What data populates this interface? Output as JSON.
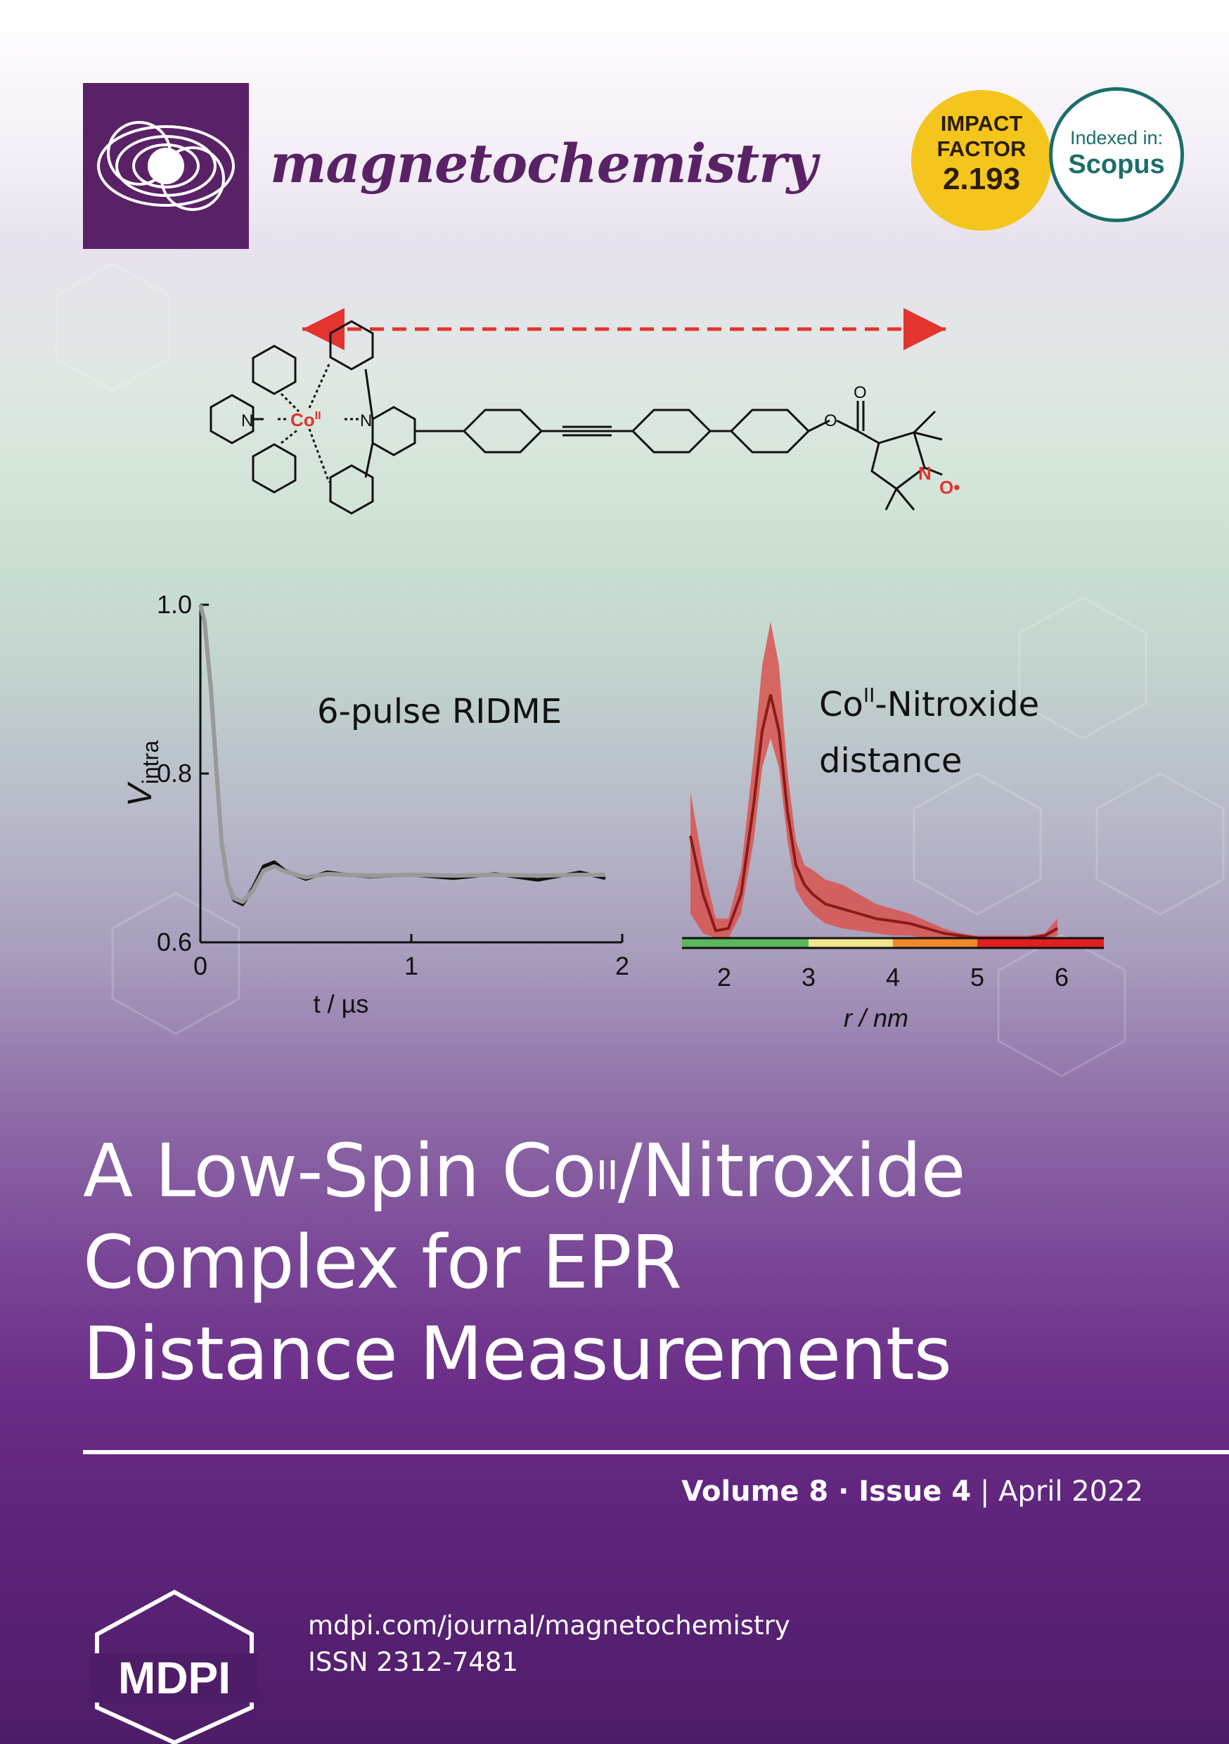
{
  "journal": {
    "name": "magnetochemistry"
  },
  "badges": {
    "impact_line1": "IMPACT",
    "impact_line2": "FACTOR",
    "impact_value": "2.193",
    "index_line1": "Indexed in:",
    "index_line2": "Scopus"
  },
  "molecule": {
    "metal_label": "Co",
    "metal_oxidation": "II",
    "n_label": "N",
    "o_label": "O",
    "nitroxide_n": "N",
    "nitroxide_o": "O•"
  },
  "chart_data": [
    {
      "type": "line",
      "title": "6-pulse RIDME",
      "xlabel": "t / µs",
      "ylabel": "V",
      "ylabel_sub": "intra",
      "xlim": [
        0,
        2
      ],
      "ylim": [
        0.6,
        1.0
      ],
      "xticks": [
        "0",
        "1",
        "2"
      ],
      "yticks": [
        "0.6",
        "0.8",
        "1.0"
      ],
      "x": [
        0.0,
        0.02,
        0.05,
        0.08,
        0.1,
        0.13,
        0.16,
        0.2,
        0.25,
        0.3,
        0.35,
        0.4,
        0.5,
        0.6,
        0.7,
        0.8,
        1.0,
        1.2,
        1.4,
        1.6,
        1.8,
        1.92
      ],
      "series": [
        {
          "values": [
            1.0,
            0.98,
            0.9,
            0.79,
            0.72,
            0.67,
            0.65,
            0.645,
            0.665,
            0.69,
            0.695,
            0.685,
            0.675,
            0.683,
            0.68,
            0.678,
            0.68,
            0.676,
            0.681,
            0.674,
            0.683,
            0.676
          ],
          "color": "#111111"
        },
        {
          "values": [
            1.0,
            0.98,
            0.9,
            0.79,
            0.72,
            0.67,
            0.652,
            0.648,
            0.662,
            0.685,
            0.69,
            0.684,
            0.677,
            0.681,
            0.68,
            0.679,
            0.68,
            0.679,
            0.68,
            0.679,
            0.68,
            0.68
          ],
          "color": "#999999"
        }
      ]
    },
    {
      "type": "area",
      "title": "Co",
      "title_sup": "II",
      "title_rest": "-Nitroxide",
      "title_line2": "distance",
      "xlabel": "r / nm",
      "xlim": [
        1.5,
        6.5
      ],
      "xticks": [
        "2",
        "3",
        "4",
        "5",
        "6"
      ],
      "x": [
        1.6,
        1.75,
        1.9,
        2.05,
        2.2,
        2.35,
        2.45,
        2.55,
        2.65,
        2.75,
        2.85,
        2.95,
        3.05,
        3.2,
        3.4,
        3.6,
        3.8,
        4.0,
        4.2,
        4.4,
        4.6,
        4.8,
        5.0,
        5.3,
        5.6,
        5.8,
        5.95
      ],
      "series": [
        {
          "name": "mean",
          "values": [
            0.42,
            0.18,
            0.03,
            0.04,
            0.18,
            0.55,
            0.85,
            1.0,
            0.85,
            0.52,
            0.3,
            0.22,
            0.18,
            0.14,
            0.12,
            0.1,
            0.08,
            0.07,
            0.06,
            0.04,
            0.02,
            0.01,
            0.0,
            0.0,
            0.0,
            0.01,
            0.04
          ],
          "color": "#8b1a1a"
        },
        {
          "name": "upper",
          "values": [
            0.6,
            0.3,
            0.08,
            0.08,
            0.28,
            0.75,
            1.12,
            1.3,
            1.12,
            0.68,
            0.4,
            0.3,
            0.28,
            0.24,
            0.22,
            0.18,
            0.14,
            0.12,
            0.1,
            0.07,
            0.04,
            0.02,
            0.01,
            0.01,
            0.01,
            0.02,
            0.08
          ],
          "color": "#d9534f"
        },
        {
          "name": "lower",
          "values": [
            0.1,
            0.02,
            0.0,
            0.0,
            0.1,
            0.4,
            0.7,
            0.82,
            0.7,
            0.4,
            0.2,
            0.14,
            0.1,
            0.06,
            0.04,
            0.03,
            0.02,
            0.01,
            0.01,
            0.0,
            0.0,
            0.0,
            0.0,
            0.0,
            0.0,
            0.0,
            0.01
          ],
          "color": "#d9534f"
        }
      ],
      "color_bar": [
        {
          "from": 1.5,
          "to": 3.0,
          "color": "#5cb85c"
        },
        {
          "from": 3.0,
          "to": 4.0,
          "color": "#f0e68c"
        },
        {
          "from": 4.0,
          "to": 5.0,
          "color": "#f0892a"
        },
        {
          "from": 5.0,
          "to": 6.5,
          "color": "#e02020"
        }
      ]
    }
  ],
  "title": {
    "line1_a": "A Low-Spin Co",
    "line1_sup": "II",
    "line1_b": "/Nitroxide",
    "line2": "Complex for EPR",
    "line3": "Distance Measurements"
  },
  "issue": {
    "volume": "Volume 8",
    "separator": " · ",
    "issue": "Issue 4",
    "pipe": " | ",
    "date": "April 2022"
  },
  "publisher": {
    "logo": "MDPI",
    "website": "mdpi.com/journal/magnetochemistry",
    "issn": "ISSN 2312-7481"
  }
}
